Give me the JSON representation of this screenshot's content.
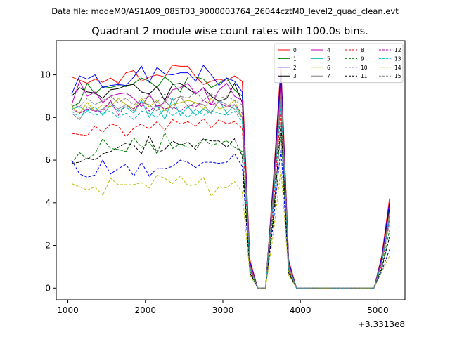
{
  "header": {
    "file_label": "Data file: modeM0/AS1A09_085T03_9000003764_26044cztM0_level2_quad_clean.evt"
  },
  "chart_data": {
    "type": "line",
    "title": "Quadrant 2 module wise count rates with 100.0s bins.",
    "xlabel": "",
    "ylabel": "",
    "x_offset_label": "+3.3313e8",
    "xlim": [
      850,
      5350
    ],
    "ylim": [
      -0.55,
      11.6
    ],
    "xticks": [
      1000,
      2000,
      3000,
      4000,
      5000
    ],
    "yticks": [
      0,
      2,
      4,
      6,
      8,
      10
    ],
    "grid": false,
    "legend": {
      "placement": "top-right",
      "columns": 4
    },
    "x": [
      1050,
      1150,
      1250,
      1350,
      1450,
      1550,
      1650,
      1750,
      1850,
      1950,
      2050,
      2150,
      2250,
      2350,
      2450,
      2550,
      2650,
      2750,
      2850,
      2950,
      3050,
      3150,
      3250,
      3350,
      3450,
      3550,
      3650,
      3750,
      3850,
      3950,
      4050,
      4150,
      4250,
      4350,
      4450,
      4550,
      4650,
      4750,
      4850,
      4950,
      5050,
      5150
    ],
    "series": [
      {
        "name": "0",
        "color": "#ff0000",
        "dash": false,
        "values": [
          9.9,
          9.75,
          9.6,
          9.8,
          9.65,
          9.85,
          9.6,
          10.1,
          10.2,
          9.7,
          9.9,
          10.0,
          9.9,
          10.45,
          10.4,
          10.4,
          9.9,
          9.55,
          9.7,
          9.8,
          9.7,
          9.95,
          9.7,
          1.3,
          0,
          0,
          5.0,
          10.5,
          1.3,
          0,
          0,
          0,
          0,
          0,
          0,
          0,
          0,
          0,
          0,
          0,
          1.5,
          4.2
        ]
      },
      {
        "name": "1",
        "color": "#008000",
        "dash": false,
        "values": [
          8.5,
          8.7,
          9.6,
          9.1,
          9.45,
          9.4,
          9.5,
          9.45,
          9.6,
          9.85,
          9.7,
          9.4,
          9.9,
          9.6,
          9.2,
          9.9,
          9.9,
          9.8,
          9.4,
          9.6,
          9.85,
          9.3,
          9.0,
          1.2,
          0,
          0,
          4.8,
          9.9,
          1.2,
          0,
          0,
          0,
          0,
          0,
          0,
          0,
          0,
          0,
          0,
          0,
          1.4,
          3.9
        ]
      },
      {
        "name": "2",
        "color": "#0000ff",
        "dash": false,
        "values": [
          9.1,
          9.95,
          9.8,
          10.0,
          9.4,
          9.5,
          9.55,
          9.5,
          9.9,
          10.4,
          9.65,
          10.35,
          10.05,
          10.0,
          10.1,
          10.1,
          9.7,
          10.45,
          10.0,
          9.5,
          9.85,
          9.7,
          9.2,
          1.2,
          0,
          0,
          4.8,
          10.2,
          1.2,
          0,
          0,
          0,
          0,
          0,
          0,
          0,
          0,
          0,
          0,
          0,
          1.4,
          4.0
        ]
      },
      {
        "name": "3",
        "color": "#000000",
        "dash": false,
        "values": [
          9.0,
          9.4,
          9.2,
          9.15,
          8.9,
          9.3,
          9.35,
          9.5,
          9.55,
          9.2,
          9.1,
          9.45,
          8.8,
          9.55,
          9.6,
          9.35,
          9.1,
          9.4,
          9.0,
          8.75,
          8.9,
          9.6,
          8.7,
          1.1,
          0,
          0,
          4.6,
          9.8,
          1.1,
          0,
          0,
          0,
          0,
          0,
          0,
          0,
          0,
          0,
          0,
          0,
          1.3,
          3.7
        ]
      },
      {
        "name": "4",
        "color": "#bf00bf",
        "dash": false,
        "values": [
          8.6,
          9.7,
          9.0,
          9.2,
          8.7,
          9.0,
          9.1,
          9.15,
          8.9,
          8.5,
          9.1,
          8.5,
          8.7,
          9.3,
          9.4,
          9.6,
          9.1,
          9.4,
          8.6,
          9.3,
          9.6,
          9.0,
          8.8,
          1.1,
          0,
          0,
          4.5,
          9.7,
          1.1,
          0,
          0,
          0,
          0,
          0,
          0,
          0,
          0,
          0,
          0,
          0,
          1.3,
          3.6
        ]
      },
      {
        "name": "5",
        "color": "#00bfbf",
        "dash": false,
        "values": [
          8.4,
          8.5,
          8.3,
          8.5,
          8.1,
          8.6,
          8.3,
          8.5,
          8.2,
          8.8,
          8.0,
          8.6,
          7.9,
          8.9,
          8.1,
          8.5,
          8.1,
          8.4,
          8.2,
          8.8,
          8.2,
          8.6,
          8.0,
          1.0,
          0,
          0,
          4.2,
          9.1,
          1.0,
          0,
          0,
          0,
          0,
          0,
          0,
          0,
          0,
          0,
          0,
          0,
          1.2,
          3.5
        ]
      },
      {
        "name": "6",
        "color": "#bfbf00",
        "dash": false,
        "values": [
          8.5,
          8.2,
          8.7,
          8.3,
          8.6,
          8.5,
          8.9,
          8.6,
          8.4,
          8.9,
          8.5,
          8.8,
          8.3,
          8.6,
          8.7,
          8.8,
          8.7,
          8.4,
          8.9,
          8.4,
          8.5,
          8.8,
          8.0,
          1.0,
          0,
          0,
          4.3,
          9.2,
          1.0,
          0,
          0,
          0,
          0,
          0,
          0,
          0,
          0,
          0,
          0,
          0,
          1.2,
          3.5
        ]
      },
      {
        "name": "7",
        "color": "#808080",
        "dash": false,
        "values": [
          8.2,
          7.9,
          8.5,
          8.3,
          8.4,
          8.7,
          8.4,
          8.6,
          8.3,
          8.7,
          8.6,
          8.3,
          8.8,
          8.4,
          9.0,
          8.5,
          8.7,
          8.6,
          8.2,
          8.8,
          8.6,
          8.4,
          8.0,
          1.0,
          0,
          0,
          4.2,
          9.0,
          1.0,
          0,
          0,
          0,
          0,
          0,
          0,
          0,
          0,
          0,
          0,
          0,
          1.2,
          3.4
        ]
      },
      {
        "name": "8",
        "color": "#ff0000",
        "dash": true,
        "values": [
          7.25,
          7.2,
          7.15,
          7.6,
          7.3,
          7.7,
          7.6,
          7.1,
          7.5,
          7.7,
          7.45,
          7.8,
          7.4,
          7.9,
          7.7,
          7.8,
          7.6,
          7.95,
          7.5,
          7.9,
          7.7,
          7.8,
          7.5,
          0.9,
          0,
          0,
          3.8,
          8.4,
          0.9,
          0,
          0,
          0,
          0,
          0,
          0,
          0,
          0,
          0,
          0,
          0,
          1.1,
          3.1
        ]
      },
      {
        "name": "9",
        "color": "#008000",
        "dash": true,
        "values": [
          5.85,
          6.35,
          6.05,
          6.3,
          7.0,
          6.55,
          6.5,
          6.4,
          7.05,
          6.6,
          6.85,
          6.3,
          7.3,
          6.55,
          6.75,
          6.6,
          6.65,
          7.0,
          6.7,
          6.8,
          6.9,
          6.6,
          6.4,
          0.8,
          0,
          0,
          3.4,
          7.4,
          0.8,
          0,
          0,
          0,
          0,
          0,
          0,
          0,
          0,
          0,
          0,
          0,
          0.95,
          2.7
        ]
      },
      {
        "name": "10",
        "color": "#0000ff",
        "dash": true,
        "values": [
          6.0,
          5.35,
          5.2,
          5.3,
          6.0,
          5.35,
          5.6,
          5.8,
          5.25,
          5.9,
          5.25,
          5.6,
          5.6,
          5.7,
          6.0,
          5.9,
          5.65,
          5.9,
          5.9,
          5.85,
          5.9,
          6.3,
          5.7,
          0.7,
          0,
          0,
          3.0,
          6.6,
          0.7,
          0,
          0,
          0,
          0,
          0,
          0,
          0,
          0,
          0,
          0,
          0,
          0.8,
          1.8
        ]
      },
      {
        "name": "11",
        "color": "#000000",
        "dash": true,
        "values": [
          5.85,
          5.9,
          6.1,
          6.0,
          6.3,
          6.4,
          6.6,
          6.8,
          6.7,
          6.3,
          7.15,
          6.35,
          6.5,
          6.9,
          6.7,
          6.85,
          6.5,
          7.0,
          6.9,
          6.9,
          6.6,
          7.0,
          6.2,
          0.7,
          0,
          0,
          3.2,
          7.8,
          0.7,
          0,
          0,
          0,
          0,
          0,
          0,
          0,
          0,
          0,
          0,
          0,
          0.9,
          2.4
        ]
      },
      {
        "name": "12",
        "color": "#bf00bf",
        "dash": true,
        "values": [
          8.4,
          8.2,
          8.4,
          8.3,
          8.3,
          8.8,
          8.1,
          8.6,
          8.4,
          8.7,
          8.3,
          8.6,
          8.4,
          8.5,
          8.3,
          8.6,
          8.5,
          8.8,
          8.6,
          8.7,
          8.5,
          8.6,
          8.2,
          1.0,
          0,
          0,
          4.1,
          8.9,
          1.0,
          0,
          0,
          0,
          0,
          0,
          0,
          0,
          0,
          0,
          0,
          0,
          1.2,
          3.3
        ]
      },
      {
        "name": "13",
        "color": "#00bfbf",
        "dash": true,
        "values": [
          8.3,
          8.0,
          8.3,
          8.1,
          8.2,
          8.3,
          8.0,
          8.2,
          7.9,
          8.3,
          8.2,
          8.0,
          8.4,
          8.1,
          8.3,
          8.0,
          8.4,
          8.1,
          8.3,
          8.2,
          8.1,
          8.3,
          7.8,
          0.9,
          0,
          0,
          4.0,
          8.8,
          0.9,
          0,
          0,
          0,
          0,
          0,
          0,
          0,
          0,
          0,
          0,
          0,
          1.1,
          3.2
        ]
      },
      {
        "name": "14",
        "color": "#bfbf00",
        "dash": true,
        "values": [
          4.9,
          4.75,
          4.6,
          4.75,
          4.35,
          5.15,
          4.85,
          4.85,
          4.85,
          4.95,
          4.7,
          5.3,
          5.15,
          4.9,
          5.25,
          4.8,
          4.85,
          5.2,
          4.3,
          4.75,
          4.7,
          5.0,
          4.5,
          0.6,
          0,
          0,
          2.5,
          5.6,
          0.6,
          0,
          0,
          0,
          0,
          0,
          0,
          0,
          0,
          0,
          0,
          0,
          0.75,
          1.5
        ]
      },
      {
        "name": "15",
        "color": "#808080",
        "dash": true,
        "values": [
          8.6,
          8.5,
          8.9,
          8.6,
          8.8,
          9.0,
          8.7,
          8.9,
          8.6,
          8.8,
          9.0,
          8.7,
          9.1,
          8.8,
          9.0,
          8.9,
          9.2,
          8.8,
          9.1,
          8.9,
          9.0,
          8.8,
          8.6,
          1.0,
          0,
          0,
          4.4,
          9.3,
          1.0,
          0,
          0,
          0,
          0,
          0,
          0,
          0,
          0,
          0,
          0,
          0,
          1.2,
          3.4
        ]
      }
    ]
  }
}
